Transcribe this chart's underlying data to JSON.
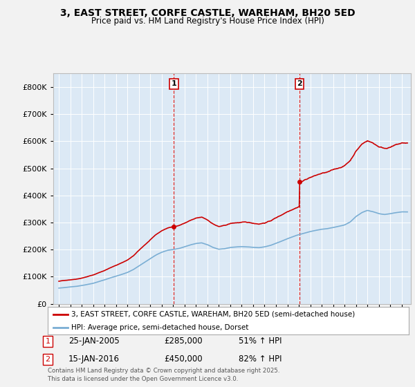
{
  "title": "3, EAST STREET, CORFE CASTLE, WAREHAM, BH20 5ED",
  "subtitle": "Price paid vs. HM Land Registry's House Price Index (HPI)",
  "legend_line1": "3, EAST STREET, CORFE CASTLE, WAREHAM, BH20 5ED (semi-detached house)",
  "legend_line2": "HPI: Average price, semi-detached house, Dorset",
  "transaction1_date": "25-JAN-2005",
  "transaction1_price": "£285,000",
  "transaction1_hpi": "51% ↑ HPI",
  "transaction1_year": 2005.07,
  "transaction2_date": "15-JAN-2016",
  "transaction2_price": "£450,000",
  "transaction2_hpi": "82% ↑ HPI",
  "transaction2_year": 2016.05,
  "footnote": "Contains HM Land Registry data © Crown copyright and database right 2025.\nThis data is licensed under the Open Government Licence v3.0.",
  "red_color": "#cc0000",
  "blue_color": "#7aaed4",
  "bg_color": "#dce9f5",
  "fig_bg": "#f2f2f2",
  "ylim": [
    0,
    850000
  ],
  "xlim_start": 1994.5,
  "xlim_end": 2025.8,
  "sale1_price": 285000,
  "sale2_price": 450000
}
